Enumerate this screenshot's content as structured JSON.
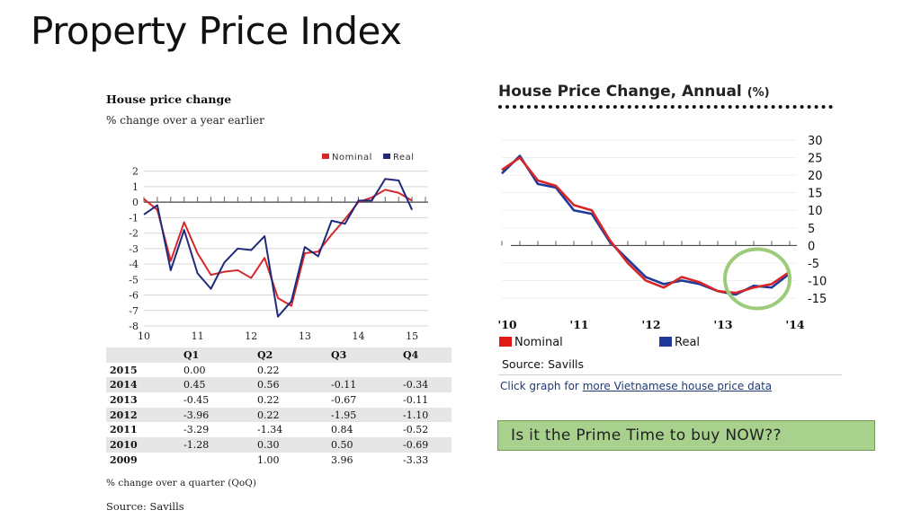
{
  "slide": {
    "title": "Property Price Index"
  },
  "left_panel": {
    "title": "House price change",
    "subtitle": "% change over a year earlier",
    "footnote": "% change over a quarter (QoQ)",
    "source": "Source: Savills",
    "table": {
      "headers": [
        "",
        "Q1",
        "Q2",
        "Q3",
        "Q4"
      ],
      "rows": [
        [
          "2015",
          "0.00",
          "0.22",
          "",
          ""
        ],
        [
          "2014",
          "0.45",
          "0.56",
          "-0.11",
          "-0.34"
        ],
        [
          "2013",
          "-0.45",
          "0.22",
          "-0.67",
          "-0.11"
        ],
        [
          "2012",
          "-3.96",
          "0.22",
          "-1.95",
          "-1.10"
        ],
        [
          "2011",
          "-3.29",
          "-1.34",
          "0.84",
          "-0.52"
        ],
        [
          "2010",
          "-1.28",
          "0.30",
          "0.50",
          "-0.69"
        ],
        [
          "2009",
          "",
          "1.00",
          "3.96",
          "-3.33"
        ]
      ]
    }
  },
  "right_panel": {
    "title": "House Price Change, Annual",
    "title_unit": "(%)",
    "source": "Source: Savills",
    "link_prefix": "Click graph for",
    "link_text": "more Vietnamese house price data",
    "cta": "Is it the Prime Time to buy NOW??"
  },
  "chart_data": [
    {
      "type": "line",
      "title": "House price change",
      "subtitle": "% change over a year earlier",
      "x_tick_labels": [
        "10",
        "11",
        "12",
        "13",
        "14",
        "15"
      ],
      "x_ticks": [
        10,
        11,
        12,
        13,
        14,
        15
      ],
      "xlim": [
        10,
        15.3
      ],
      "ylim": [
        -8,
        2.5
      ],
      "y_ticks": [
        2,
        1,
        0,
        -1,
        -2,
        -3,
        -4,
        -5,
        -6,
        -7,
        -8
      ],
      "grid": true,
      "legend_position": "top-right",
      "series": [
        {
          "name": "Nominal",
          "color": "#d62728",
          "x": [
            10,
            10.25,
            10.5,
            10.75,
            11,
            11.25,
            11.5,
            11.75,
            12,
            12.25,
            12.5,
            12.75,
            13,
            13.25,
            13.5,
            13.75,
            14,
            14.25,
            14.5,
            14.75,
            15
          ],
          "y": [
            0.2,
            -0.5,
            -3.8,
            -1.3,
            -3.3,
            -4.7,
            -4.5,
            -4.4,
            -4.9,
            -3.6,
            -6.2,
            -6.7,
            -3.3,
            -3.2,
            -2.1,
            -1.1,
            0,
            0.3,
            0.8,
            0.6,
            0.1
          ]
        },
        {
          "name": "Real",
          "color": "#1f2a7a",
          "x": [
            10,
            10.25,
            10.5,
            10.75,
            11,
            11.25,
            11.5,
            11.75,
            12,
            12.25,
            12.5,
            12.75,
            13,
            13.25,
            13.5,
            13.75,
            14,
            14.25,
            14.5,
            14.75,
            15
          ],
          "y": [
            -0.8,
            -0.2,
            -4.4,
            -1.8,
            -4.6,
            -5.6,
            -3.9,
            -3.0,
            -3.1,
            -2.2,
            -7.4,
            -6.4,
            -2.9,
            -3.5,
            -1.2,
            -1.4,
            0.1,
            0.1,
            1.5,
            1.4,
            -0.5
          ]
        }
      ]
    },
    {
      "type": "line",
      "title": "House Price Change, Annual (%)",
      "x_tick_labels": [
        "'10",
        "'11",
        "'12",
        "'13",
        "'14"
      ],
      "x_ticks": [
        2010,
        2011,
        2012,
        2013,
        2014
      ],
      "xlim": [
        2010,
        2014.1
      ],
      "ylim": [
        -15,
        30
      ],
      "y_ticks": [
        30,
        25,
        20,
        15,
        10,
        5,
        0,
        -5,
        -10,
        -15
      ],
      "legend_position": "bottom",
      "annotation": "green circle highlighting 2013 Q3 to 2014",
      "series": [
        {
          "name": "Nominal",
          "color": "#d62728",
          "x": [
            2010,
            2010.25,
            2010.5,
            2010.75,
            2011,
            2011.25,
            2011.5,
            2011.75,
            2012,
            2012.25,
            2012.5,
            2012.75,
            2013,
            2013.25,
            2013.5,
            2013.75,
            2014
          ],
          "y": [
            21.5,
            25,
            18.5,
            17,
            11.5,
            10,
            1.5,
            -5,
            -10,
            -12,
            -9,
            -10.5,
            -13,
            -13.5,
            -12,
            -11,
            -7.5
          ]
        },
        {
          "name": "Real",
          "color": "#1f3a9a",
          "x": [
            2010,
            2010.25,
            2010.5,
            2010.75,
            2011,
            2011.25,
            2011.5,
            2011.75,
            2012,
            2012.25,
            2012.5,
            2012.75,
            2013,
            2013.25,
            2013.5,
            2013.75,
            2014
          ],
          "y": [
            20.5,
            25.5,
            17.5,
            16.5,
            10,
            9,
            1,
            -4,
            -9,
            -11,
            -10,
            -11,
            -13,
            -14,
            -11.5,
            -12,
            -8
          ]
        }
      ]
    }
  ]
}
